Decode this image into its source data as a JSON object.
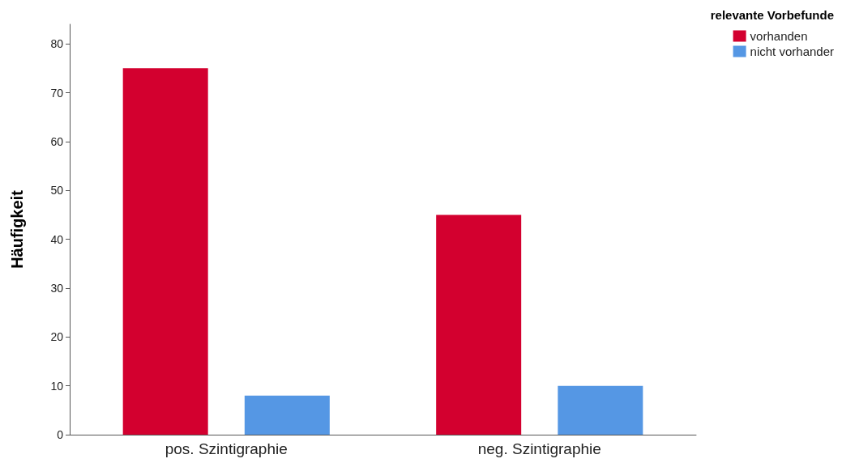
{
  "chart_data": {
    "type": "bar",
    "ylabel": "Häufigkeit",
    "legend_title": "relevante Vorbefunde",
    "categories": [
      "pos. Szintigraphie",
      "neg. Szintigraphie"
    ],
    "series": [
      {
        "name": "vorhanden",
        "color": "#d3002f",
        "values": [
          75,
          45
        ]
      },
      {
        "name": "nicht vorhander",
        "color": "#5597e4",
        "values": [
          8,
          10
        ]
      }
    ],
    "ylim": [
      0,
      84
    ],
    "yticks": [
      0,
      10,
      20,
      30,
      40,
      50,
      60,
      70,
      80
    ],
    "grid": false,
    "legend": "top right"
  }
}
